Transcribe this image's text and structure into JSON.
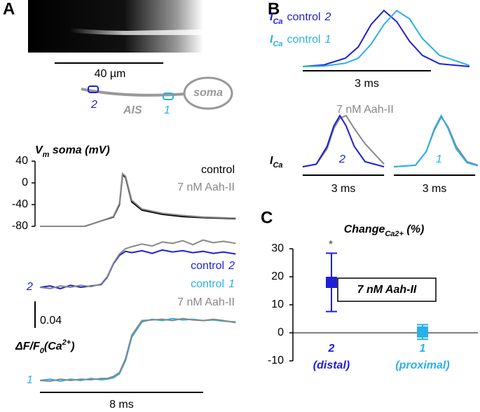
{
  "panel_labels": [
    "A",
    "B",
    "C"
  ],
  "panel_a": {
    "image_scale_label": "40 µm",
    "soma_label": "soma",
    "ais_label": "AIS",
    "site_distal": "2",
    "site_proximal": "1"
  },
  "chart_data": [
    {
      "type": "line",
      "ylabel": "V",
      "ylabel_sub": "m",
      "ylabel_rest": " soma (mV)",
      "x": [
        0,
        2.2,
        3.0,
        3.6,
        3.9,
        4.05,
        4.2,
        4.5,
        5,
        6,
        7,
        8,
        9.6
      ],
      "xlim": [
        0,
        9.6
      ],
      "ylim": [
        -80,
        40
      ],
      "yticks": [
        40,
        0,
        -40,
        -80
      ],
      "series": [
        {
          "name": "control",
          "color": "#000000",
          "values": [
            -80,
            -80,
            -70,
            -63,
            -40,
            15,
            10,
            -35,
            -50,
            -58,
            -62,
            -64,
            -66
          ]
        },
        {
          "name": "7 nM Aah-II",
          "color": "#888888",
          "values": [
            -80,
            -80,
            -70,
            -62,
            -38,
            17,
            12,
            -32,
            -48,
            -56,
            -60,
            -63,
            -65
          ]
        }
      ]
    },
    {
      "type": "line",
      "ylabel": "ΔF/F",
      "ylabel_sub": "0",
      "ylabel_rest": "(Ca",
      "ylabel_sup": "2+",
      "ylabel_end": ")",
      "scale_bar": 0.04,
      "time_scale_bar": 8,
      "time_scale_label": "8 ms",
      "x": [
        0,
        0.5,
        1,
        1.5,
        2,
        2.5,
        3,
        3.3,
        3.6,
        3.9,
        4.2,
        4.5,
        5,
        5.5,
        6,
        6.5,
        7,
        7.5,
        8,
        8.5,
        9,
        9.6
      ],
      "series": [
        {
          "name": "control",
          "site": "2",
          "color": "#1f1fd6",
          "values": [
            0,
            0.002,
            -0.002,
            0.003,
            0,
            0.002,
            0.004,
            0.015,
            0.035,
            0.048,
            0.054,
            0.052,
            0.055,
            0.051,
            0.056,
            0.053,
            0.055,
            0.052,
            0.054,
            0.051,
            0.053,
            0.05
          ]
        },
        {
          "name": "control",
          "site": "1",
          "color": "#2ab0e8",
          "values": [
            0,
            0.002,
            -0.001,
            0.002,
            0,
            0.003,
            0.001,
            0.002,
            0.004,
            0.01,
            0.03,
            0.065,
            0.088,
            0.092,
            0.09,
            0.093,
            0.091,
            0.092,
            0.09,
            0.091,
            0.089,
            0.088
          ]
        },
        {
          "name": "7 nM Aah-II",
          "site": "2",
          "color": "#888888",
          "values": [
            0,
            -0.002,
            0.002,
            0,
            0.003,
            0.001,
            0.005,
            0.016,
            0.036,
            0.05,
            0.058,
            0.061,
            0.065,
            0.062,
            0.068,
            0.066,
            0.07,
            0.064,
            0.071,
            0.067,
            0.069,
            0.066
          ]
        },
        {
          "name": "7 nM Aah-II",
          "site": "1",
          "color": "#888888",
          "values": [
            0,
            -0.001,
            0.002,
            0,
            0.002,
            0.001,
            0.003,
            0.003,
            0.006,
            0.012,
            0.033,
            0.068,
            0.09,
            0.091,
            0.092,
            0.09,
            0.093,
            0.091,
            0.09,
            0.092,
            0.09,
            0.087
          ]
        }
      ]
    },
    {
      "type": "line",
      "ylabel": "I",
      "ylabel_sub": "Ca",
      "time_scale_bar": 3,
      "time_scale_label": "3 ms",
      "x": [
        0,
        0.5,
        1.0,
        1.3,
        1.6,
        1.9,
        2.2,
        2.5,
        2.8,
        3.2,
        3.9
      ],
      "series": [
        {
          "name": "control",
          "site": "2",
          "color": "#1f1fd6",
          "values": [
            0,
            0.03,
            0.15,
            0.35,
            0.75,
            1.0,
            0.8,
            0.45,
            0.2,
            0.05,
            0
          ]
        },
        {
          "name": "control",
          "site": "1",
          "color": "#2ab0e8",
          "values": [
            0,
            0.01,
            0.06,
            0.15,
            0.4,
            0.75,
            1.0,
            0.85,
            0.5,
            0.2,
            0.02
          ]
        }
      ]
    },
    {
      "type": "line",
      "ylabel": "I",
      "ylabel_sub": "Ca",
      "time_scale_bar": 3,
      "time_scale_label": "3 ms",
      "x": [
        0,
        0.5,
        0.9,
        1.15,
        1.37,
        1.6,
        1.9,
        2.3,
        3.0
      ],
      "series": [
        {
          "name": "7 nM Aah-II",
          "color": "#888888",
          "values": [
            0,
            0.05,
            0.35,
            0.75,
            0.95,
            1.0,
            0.75,
            0.45,
            0.05
          ]
        },
        {
          "name": "control",
          "site": "2",
          "color": "#1f1fd6",
          "values": [
            0,
            0.05,
            0.4,
            0.8,
            1.0,
            0.8,
            0.4,
            0.1,
            0
          ]
        }
      ]
    },
    {
      "type": "line",
      "time_scale_bar": 3,
      "time_scale_label": "3 ms",
      "x": [
        0,
        0.8,
        1.2,
        1.5,
        1.75,
        2.0,
        2.3,
        2.7,
        3.1
      ],
      "series": [
        {
          "name": "7 nM Aah-II",
          "color": "#888888",
          "values": [
            0,
            0.03,
            0.3,
            0.72,
            0.97,
            0.78,
            0.4,
            0.1,
            0.03
          ]
        },
        {
          "name": "control",
          "site": "1",
          "color": "#2ab0e8",
          "values": [
            0,
            0.03,
            0.3,
            0.75,
            1.0,
            0.75,
            0.35,
            0.08,
            0.02
          ]
        }
      ]
    },
    {
      "type": "errorbar",
      "title": "Change",
      "title_sub": "Ca2+",
      "title_rest": " (%)",
      "categories": [
        "2",
        "1"
      ],
      "category_notes": [
        "(distal)",
        "(proximal)"
      ],
      "values": [
        18,
        0.3
      ],
      "errors": [
        10.4,
        2.6
      ],
      "colors": [
        "#1f1fd6",
        "#2ab0e8"
      ],
      "ylim": [
        -10,
        30
      ],
      "yticks": [
        -10,
        0,
        10,
        20,
        30
      ],
      "annotations": [
        "*"
      ],
      "box_label": "7 nM Aah-II"
    }
  ]
}
